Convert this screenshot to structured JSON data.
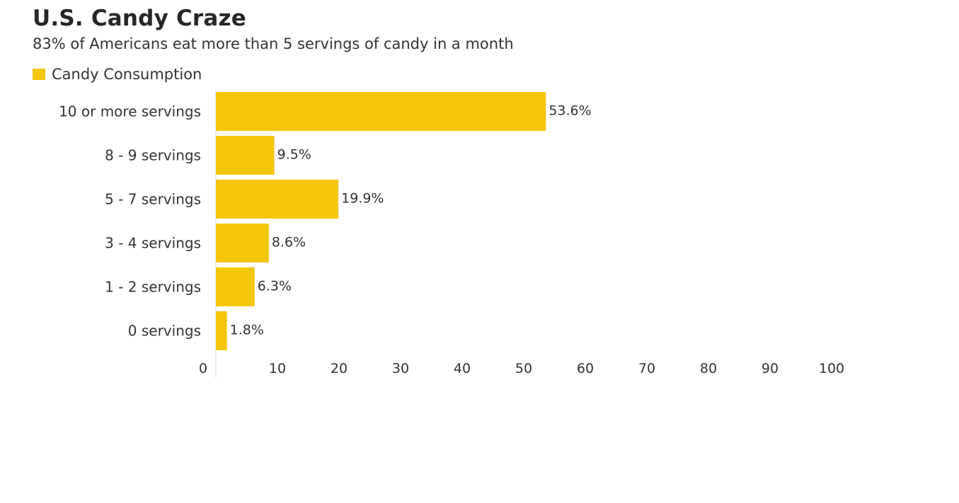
{
  "chart_data": {
    "type": "bar",
    "orientation": "horizontal",
    "title": "U.S. Candy Craze",
    "subtitle": "83% of Americans eat more than 5 servings of candy in a month",
    "legend": {
      "entries": [
        "Candy Consumption"
      ],
      "placement": "top-left"
    },
    "categories": [
      "10 or more servings",
      "8 - 9 servings",
      "5 - 7 servings",
      "3 - 4 servings",
      "1 - 2 servings",
      "0 servings"
    ],
    "series": [
      {
        "name": "Candy Consumption",
        "values": [
          53.6,
          9.5,
          19.9,
          8.6,
          6.3,
          1.8
        ],
        "labels": [
          "53.6%",
          "9.5%",
          "19.9%",
          "8.6%",
          "6.3%",
          "1.8%"
        ]
      }
    ],
    "xticks": [
      "0",
      "10",
      "20",
      "30",
      "40",
      "50",
      "60",
      "70",
      "80",
      "90",
      "100"
    ],
    "xlim": [
      0,
      100
    ],
    "grid": false
  },
  "colors": {
    "bar": "#F5C50A",
    "title": "#262626",
    "text": "#333333",
    "axis": "#d9d9d9"
  }
}
